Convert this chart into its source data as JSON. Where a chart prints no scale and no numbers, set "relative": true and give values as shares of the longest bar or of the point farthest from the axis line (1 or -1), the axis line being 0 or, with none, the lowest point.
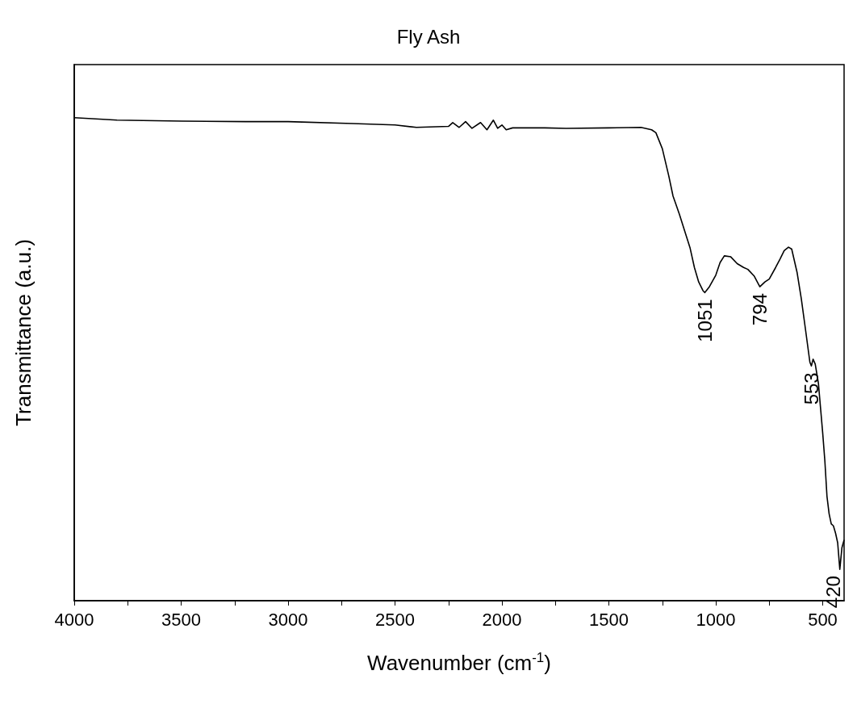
{
  "chart_data": {
    "type": "line",
    "title": "Fly Ash",
    "xlabel": "Wavenumber (cm$^{-1}$)",
    "ylabel": "Transmittance (a.u.)",
    "relative": true,
    "grid": false,
    "marker": "none",
    "line_style": "solid",
    "xlim": [
      4000,
      400
    ],
    "xticks": [
      4000,
      {
        "value": 3750,
        "label": null
      },
      3500,
      {
        "value": 3250,
        "label": null
      },
      3000,
      {
        "value": 2750,
        "label": null
      },
      2500,
      {
        "value": 2250,
        "label": null
      },
      2000,
      {
        "value": 1750,
        "label": null
      },
      1500,
      {
        "value": 1250,
        "label": null
      },
      1000,
      {
        "value": 750,
        "label": null
      },
      500
    ],
    "series": [
      {
        "color": "#000000",
        "x": [
          4000,
          3800,
          3500,
          3200,
          3000,
          2700,
          2500,
          2400,
          2250,
          2230,
          2200,
          2170,
          2140,
          2100,
          2070,
          2040,
          2020,
          2000,
          1980,
          1950,
          1800,
          1700,
          1500,
          1350,
          1300,
          1280,
          1250,
          1220,
          1200,
          1170,
          1150,
          1120,
          1100,
          1080,
          1060,
          1051,
          1030,
          1000,
          980,
          960,
          930,
          900,
          870,
          850,
          820,
          800,
          794,
          770,
          750,
          720,
          700,
          680,
          660,
          645,
          620,
          600,
          580,
          560,
          553,
          545,
          535,
          520,
          500,
          490,
          480,
          470,
          460,
          450,
          440,
          430,
          420,
          410,
          400
        ],
        "values": [
          1.0,
          0.995,
          0.993,
          0.992,
          0.992,
          0.988,
          0.985,
          0.98,
          0.982,
          0.99,
          0.98,
          0.992,
          0.978,
          0.99,
          0.975,
          0.995,
          0.978,
          0.985,
          0.975,
          0.979,
          0.979,
          0.978,
          0.979,
          0.98,
          0.975,
          0.969,
          0.936,
          0.88,
          0.838,
          0.8,
          0.772,
          0.73,
          0.69,
          0.66,
          0.642,
          0.638,
          0.65,
          0.674,
          0.7,
          0.714,
          0.712,
          0.698,
          0.69,
          0.686,
          0.672,
          0.655,
          0.65,
          0.66,
          0.666,
          0.69,
          0.707,
          0.725,
          0.732,
          0.728,
          0.68,
          0.625,
          0.56,
          0.494,
          0.486,
          0.5,
          0.49,
          0.45,
          0.347,
          0.29,
          0.216,
          0.18,
          0.159,
          0.155,
          0.14,
          0.12,
          0.065,
          0.11,
          0.126
        ]
      }
    ],
    "annotations": [
      {
        "text": "1051",
        "x": 1051,
        "y": 0.638
      },
      {
        "text": "794",
        "x": 794,
        "y": 0.65
      },
      {
        "text": "553",
        "x": 553,
        "y": 0.486
      },
      {
        "text": "420",
        "x": 420,
        "y": 0.065
      }
    ]
  }
}
